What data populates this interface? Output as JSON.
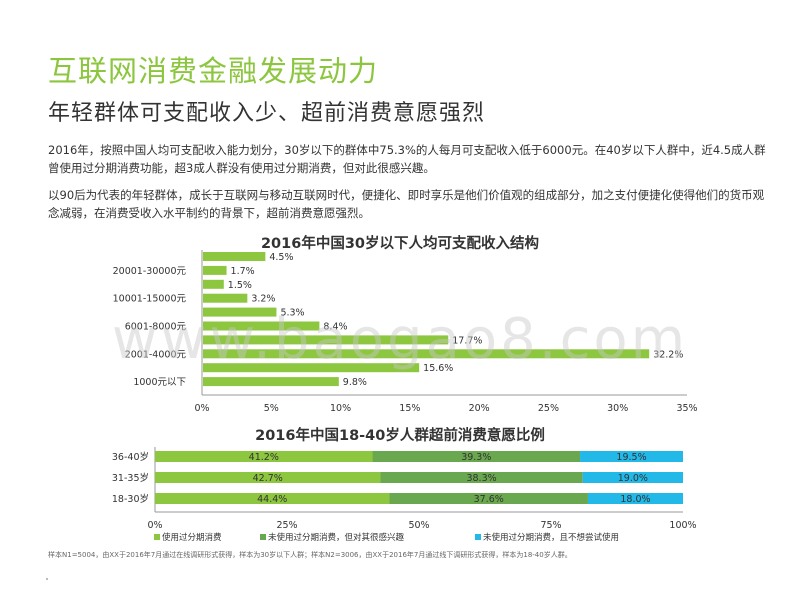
{
  "header": {
    "title": "互联网消费金融发展动力",
    "subtitle": "年轻群体可支配收入少、超前消费意愿强烈"
  },
  "paragraphs": [
    "2016年，按照中国人均可支配收入能力划分，30岁以下的群体中75.3%的人每月可支配收入低于6000元。在40岁以下人群中，近4.5成人群曾使用过分期消费功能，超3成人群没有使用过分期消费，但对此很感兴趣。",
    "以90后为代表的年轻群体，成长于互联网与移动互联网时代，便捷化、即时享乐是他们价值观的组成部分，加之支付便捷化使得他们的货币观念减弱，在消费受收入水平制约的背景下，超前消费意愿强烈。"
  ],
  "watermark": "www.baogao8.com",
  "footnote": "样本N1=5004，由XX于2016年7月通过在线调研形式获得，样本为30岁以下人群；样本N2=3006，由XX于2016年7月通过线下调研形式获得，样本为18-40岁人群。",
  "colors": {
    "accent": "#8cc63f",
    "green_light": "#8dc63f",
    "green_dark": "#6aa84f",
    "cyan": "#22b8e8"
  },
  "chart_data": [
    {
      "type": "bar",
      "orientation": "horizontal",
      "title": "2016年中国30岁以下人均可支配收入结构",
      "categories": [
        "20001-30000元",
        "10001-15000元",
        "6001-8000元",
        "2001-4000元",
        "1000元以下"
      ],
      "bar_values": [
        4.5,
        1.7,
        1.5,
        3.2,
        5.3,
        8.4,
        17.7,
        32.2,
        15.6,
        9.8
      ],
      "value_labels": [
        "4.5%",
        "1.7%",
        "1.5%",
        "3.2%",
        "5.3%",
        "8.4%",
        "17.7%",
        "32.2%",
        "15.6%",
        "9.8%"
      ],
      "xticks": [
        "0%",
        "5%",
        "10%",
        "15%",
        "20%",
        "25%",
        "30%",
        "35%"
      ],
      "xlim": [
        0,
        35
      ],
      "legend": "人口占比（%）"
    },
    {
      "type": "bar",
      "orientation": "horizontal",
      "stacked": true,
      "title": "2016年中国18-40岁人群超前消费意愿比例",
      "categories": [
        "36-40岁",
        "31-35岁",
        "18-30岁"
      ],
      "series": [
        {
          "name": "使用过分期消费",
          "values": [
            41.2,
            42.7,
            44.4
          ],
          "labels": [
            "41.2%",
            "42.7%",
            "44.4%"
          ]
        },
        {
          "name": "未使用过分期消费，但对其很感兴趣",
          "values": [
            39.3,
            38.3,
            37.6
          ],
          "labels": [
            "39.3%",
            "38.3%",
            "37.6%"
          ]
        },
        {
          "name": "未使用过分期消费，且不想尝试使用",
          "values": [
            19.5,
            19.0,
            18.0
          ],
          "labels": [
            "19.5%",
            "19.0%",
            "18.0%"
          ]
        }
      ],
      "xticks": [
        "0%",
        "25%",
        "50%",
        "75%",
        "100%"
      ],
      "xlim": [
        0,
        100
      ]
    }
  ]
}
